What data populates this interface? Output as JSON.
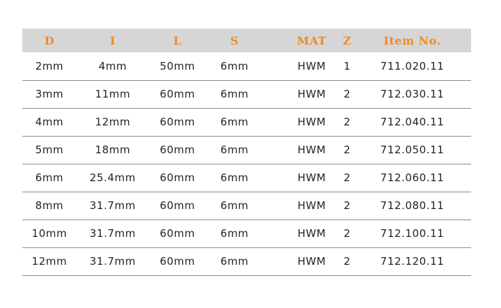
{
  "table": {
    "headers": [
      "D",
      "I",
      "L",
      "S",
      "MAT",
      "Z",
      "Item No."
    ],
    "rows": [
      [
        "2mm",
        "4mm",
        "50mm",
        "6mm",
        "HWM",
        "1",
        "711.020.11"
      ],
      [
        "3mm",
        "11mm",
        "60mm",
        "6mm",
        "HWM",
        "2",
        "712.030.11"
      ],
      [
        "4mm",
        "12mm",
        "60mm",
        "6mm",
        "HWM",
        "2",
        "712.040.11"
      ],
      [
        "5mm",
        "18mm",
        "60mm",
        "6mm",
        "HWM",
        "2",
        "712.050.11"
      ],
      [
        "6mm",
        "25.4mm",
        "60mm",
        "6mm",
        "HWM",
        "2",
        "712.060.11"
      ],
      [
        "8mm",
        "31.7mm",
        "60mm",
        "6mm",
        "HWM",
        "2",
        "712.080.11"
      ],
      [
        "10mm",
        "31.7mm",
        "60mm",
        "6mm",
        "HWM",
        "2",
        "712.100.11"
      ],
      [
        "12mm",
        "31.7mm",
        "60mm",
        "6mm",
        "HWM",
        "2",
        "712.120.11"
      ]
    ]
  },
  "colors": {
    "header_background": "#d6d6d6",
    "header_text": "#ef8a2a",
    "body_text": "#222222",
    "row_divider": "#8a8a8a"
  }
}
